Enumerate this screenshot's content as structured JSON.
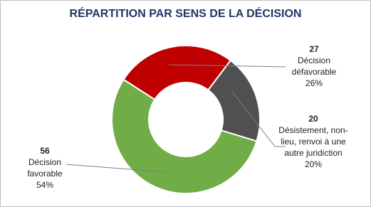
{
  "chart_data": {
    "type": "donut",
    "title": "RÉPARTITION PAR SENS DE LA DÉCISION",
    "categories": [
      "Décision favorable",
      "Décision défavorable",
      "Désistement, non-lieu, renvoi à une autre juridiction"
    ],
    "values": [
      56,
      27,
      20
    ],
    "percent_labels": [
      "54%",
      "26%",
      "20%"
    ],
    "colors": [
      "#70ad47",
      "#c00000",
      "#505050"
    ]
  }
}
